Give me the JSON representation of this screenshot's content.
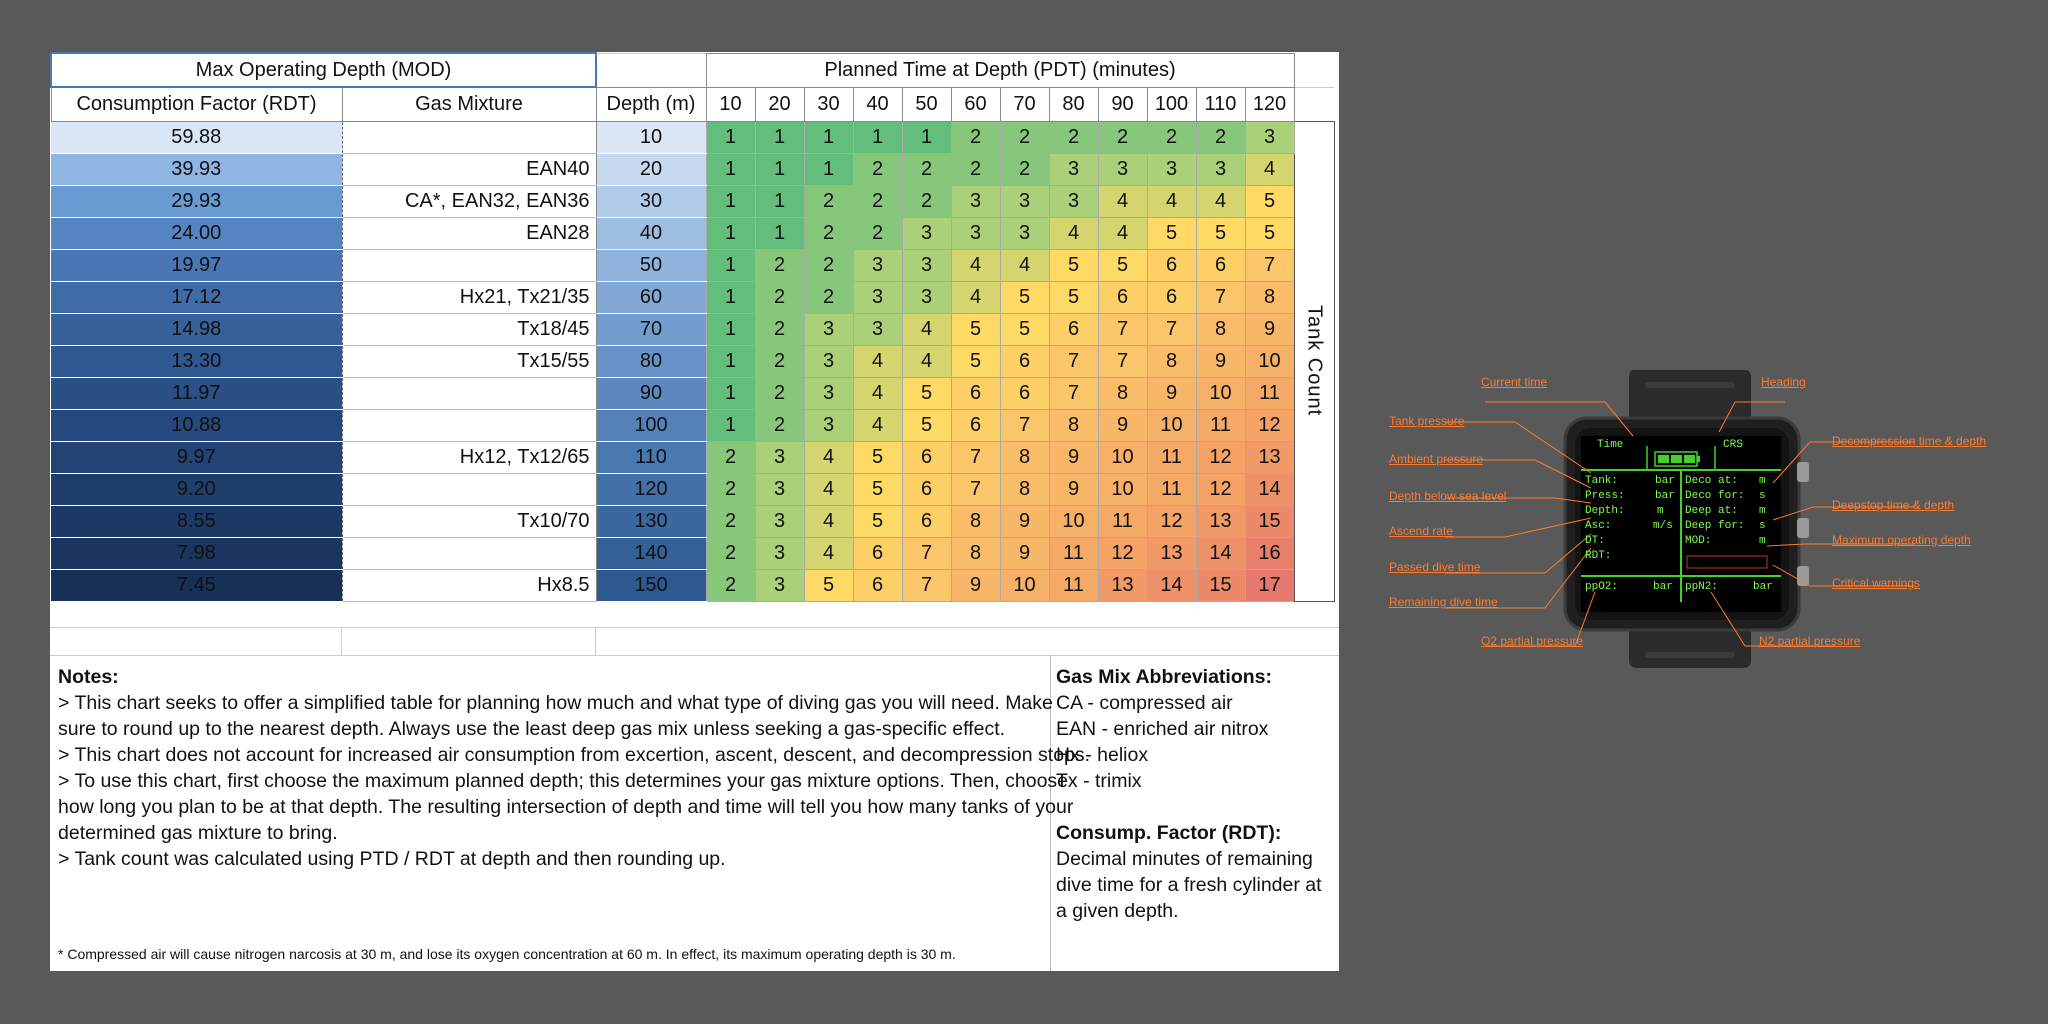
{
  "table": {
    "mod_header": "Max Operating Depth (MOD)",
    "pdt_header": "Planned Time at Depth (PDT) (minutes)",
    "col_rdt": "Consumption Factor (RDT)",
    "col_gas": "Gas Mixture",
    "col_depth": "Depth (m)",
    "times": [
      "10",
      "20",
      "30",
      "40",
      "50",
      "60",
      "70",
      "80",
      "90",
      "100",
      "110",
      "120"
    ],
    "tank_count_label": "Tank Count",
    "rows": [
      {
        "rdt": "59.88",
        "gas": "",
        "depth": "10",
        "counts": [
          1,
          1,
          1,
          1,
          1,
          2,
          2,
          2,
          2,
          2,
          2,
          3
        ]
      },
      {
        "rdt": "39.93",
        "gas": "EAN40",
        "depth": "20",
        "counts": [
          1,
          1,
          1,
          2,
          2,
          2,
          2,
          3,
          3,
          3,
          3,
          4
        ]
      },
      {
        "rdt": "29.93",
        "gas": "CA*, EAN32, EAN36",
        "depth": "30",
        "counts": [
          1,
          1,
          2,
          2,
          2,
          3,
          3,
          3,
          4,
          4,
          4,
          5
        ]
      },
      {
        "rdt": "24.00",
        "gas": "EAN28",
        "depth": "40",
        "counts": [
          1,
          1,
          2,
          2,
          3,
          3,
          3,
          4,
          4,
          5,
          5,
          5
        ]
      },
      {
        "rdt": "19.97",
        "gas": "",
        "depth": "50",
        "counts": [
          1,
          2,
          2,
          3,
          3,
          4,
          4,
          5,
          5,
          6,
          6,
          7
        ]
      },
      {
        "rdt": "17.12",
        "gas": "Hx21, Tx21/35",
        "depth": "60",
        "counts": [
          1,
          2,
          2,
          3,
          3,
          4,
          5,
          5,
          6,
          6,
          7,
          8
        ]
      },
      {
        "rdt": "14.98",
        "gas": "Tx18/45",
        "depth": "70",
        "counts": [
          1,
          2,
          3,
          3,
          4,
          5,
          5,
          6,
          7,
          7,
          8,
          9
        ]
      },
      {
        "rdt": "13.30",
        "gas": "Tx15/55",
        "depth": "80",
        "counts": [
          1,
          2,
          3,
          4,
          4,
          5,
          6,
          7,
          7,
          8,
          9,
          10
        ]
      },
      {
        "rdt": "11.97",
        "gas": "",
        "depth": "90",
        "counts": [
          1,
          2,
          3,
          4,
          5,
          6,
          6,
          7,
          8,
          9,
          10,
          11
        ]
      },
      {
        "rdt": "10.88",
        "gas": "",
        "depth": "100",
        "counts": [
          1,
          2,
          3,
          4,
          5,
          6,
          7,
          8,
          9,
          10,
          11,
          12
        ]
      },
      {
        "rdt": "9.97",
        "gas": "Hx12, Tx12/65",
        "depth": "110",
        "counts": [
          2,
          3,
          4,
          5,
          6,
          7,
          8,
          9,
          10,
          11,
          12,
          13
        ]
      },
      {
        "rdt": "9.20",
        "gas": "",
        "depth": "120",
        "counts": [
          2,
          3,
          4,
          5,
          6,
          7,
          8,
          9,
          10,
          11,
          12,
          14
        ]
      },
      {
        "rdt": "8.55",
        "gas": "Tx10/70",
        "depth": "130",
        "counts": [
          2,
          3,
          4,
          5,
          6,
          8,
          9,
          10,
          11,
          12,
          13,
          15
        ]
      },
      {
        "rdt": "7.98",
        "gas": "",
        "depth": "140",
        "counts": [
          2,
          3,
          4,
          6,
          7,
          8,
          9,
          11,
          12,
          13,
          14,
          16
        ]
      },
      {
        "rdt": "7.45",
        "gas": "Hx8.5",
        "depth": "150",
        "counts": [
          2,
          3,
          5,
          6,
          7,
          9,
          10,
          11,
          13,
          14,
          15,
          17
        ]
      }
    ]
  },
  "notes": {
    "title": "Notes:",
    "lines": [
      "> This chart seeks to offer a simplified table for planning how much and what type of diving gas you will need. Make sure to round up to the nearest depth. Always use the least deep gas mix unless seeking a gas-specific effect.",
      "> This chart does not account for increased air consumption from excertion, ascent, descent, and decompression stops.",
      "> To use this chart, first choose the maximum planned depth; this determines your gas mixture options. Then, choose how long you plan to be at that depth. The resulting intersection of depth and time will tell you how many tanks of your determined gas mixture to bring.",
      "> Tank count was calculated using PTD / RDT at depth and then rounding up."
    ],
    "footnote": "* Compressed air will cause nitrogen narcosis at 30 m, and lose its oxygen concentration at 60 m. In effect, its maximum operating depth is 30 m."
  },
  "abbreviations": {
    "title": "Gas Mix Abbreviations:",
    "items": [
      "CA - compressed air",
      "EAN - enriched air nitrox",
      "Hx - heliox",
      "Tx - trimix"
    ],
    "rdt_title": "Consump. Factor (RDT):",
    "rdt_text": "Decimal minutes of remaining dive time for a fresh cylinder at a given depth."
  },
  "watch": {
    "labels": {
      "current_time": "Current time",
      "heading": "Heading",
      "tank_pressure": "Tank pressure",
      "ambient_pressure": "Ambient pressure",
      "depth_below": "Depth below sea level",
      "ascend_rate": "Ascend rate",
      "passed_time": "Passed dive time",
      "remaining_time": "Remaining dive time",
      "o2_partial": "O2 partial pressure",
      "deco": "Decompression time & depth",
      "deepstop": "Deepstop time & depth",
      "mod": "Maximum operating depth",
      "critical": "Critical warnings",
      "n2_partial": "N2 partial pressure"
    },
    "screen": {
      "time": "Time",
      "crs": "CRS",
      "tank": "Tank:",
      "press": "Press:",
      "depth": "Depth:",
      "asc": "Asc:",
      "dt": "DT:",
      "rdt": "RDT:",
      "bar1": "bar",
      "bar2": "bar",
      "m1": "m",
      "ms": "m/s",
      "deco_at": "Deco at:",
      "deco_for": "Deco for:",
      "deep_at": "Deep at:",
      "deep_for": "Deep for:",
      "mod": "MOD:",
      "u_m1": "m",
      "u_s1": "s",
      "u_m2": "m",
      "u_s2": "s",
      "u_m3": "m",
      "ppo2": "ppO2:",
      "ppo2_unit": "bar",
      "ppn2": "ppN2:",
      "ppn2_unit": "bar"
    }
  },
  "colors": {
    "rdt_shades": [
      "#d9e6f5",
      "#8fb6e3",
      "#6a9ad2",
      "#5584c0",
      "#4a77b3",
      "#3f6ba6",
      "#36619b",
      "#2f5890",
      "#2a5086",
      "#26497d",
      "#224374",
      "#1f3e6c",
      "#1c3965",
      "#1a355f",
      "#173058"
    ],
    "depth_shades": [
      "#dbe7f5",
      "#c6d9ef",
      "#b2cbe8",
      "#9dbde1",
      "#8fb3dc",
      "#82a9d6",
      "#739dcf",
      "#6792c7",
      "#5c88bf",
      "#5381b8",
      "#4a78b0",
      "#4270a8",
      "#3b68a0",
      "#346098",
      "#2e5890"
    ]
  }
}
